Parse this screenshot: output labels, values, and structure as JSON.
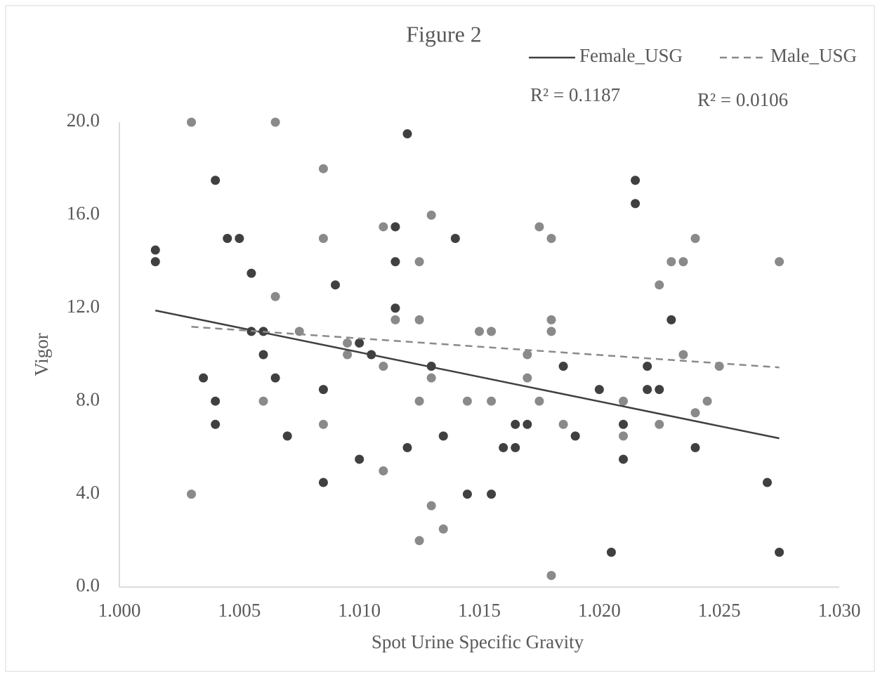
{
  "chart_data": {
    "type": "scatter",
    "title": "Figure 2",
    "x_label": "Spot Urine Specific Gravity",
    "y_label": "Vigor",
    "xlim": [
      1.0,
      1.03
    ],
    "xticks": [
      {
        "value": 1.0,
        "label": "1.000"
      },
      {
        "value": 1.005,
        "label": "1.005"
      },
      {
        "value": 1.01,
        "label": "1.010"
      },
      {
        "value": 1.015,
        "label": "1.015"
      },
      {
        "value": 1.02,
        "label": "1.020"
      },
      {
        "value": 1.025,
        "label": "1.025"
      },
      {
        "value": 1.03,
        "label": "1.030"
      }
    ],
    "ylim": [
      0,
      20
    ],
    "yticks": [
      {
        "value": 0,
        "label": "0.0"
      },
      {
        "value": 4,
        "label": "4.0"
      },
      {
        "value": 8,
        "label": "8.0"
      },
      {
        "value": 12,
        "label": "12.0"
      },
      {
        "value": 16,
        "label": "16.0"
      },
      {
        "value": 20,
        "label": "20.0"
      }
    ],
    "grid": false,
    "legend_position": "top-right",
    "series": [
      {
        "name": "Female_USG",
        "color": "#404040",
        "x": [
          1.0015,
          1.0015,
          1.0035,
          1.004,
          1.004,
          1.004,
          1.0045,
          1.005,
          1.0055,
          1.0055,
          1.006,
          1.006,
          1.0065,
          1.007,
          1.0085,
          1.0085,
          1.009,
          1.01,
          1.01,
          1.0105,
          1.0115,
          1.0115,
          1.0115,
          1.012,
          1.012,
          1.013,
          1.0135,
          1.014,
          1.0145,
          1.0155,
          1.016,
          1.0165,
          1.0165,
          1.017,
          1.0185,
          1.019,
          1.02,
          1.0205,
          1.021,
          1.021,
          1.0215,
          1.0215,
          1.022,
          1.022,
          1.0225,
          1.023,
          1.024,
          1.027,
          1.0275
        ],
        "values": [
          14.5,
          14,
          9,
          17.5,
          8,
          7,
          15,
          15,
          13.5,
          11,
          11,
          10,
          9,
          6.5,
          8.5,
          4.5,
          13,
          10.5,
          5.5,
          10,
          15.5,
          14,
          12,
          19.5,
          6,
          9.5,
          6.5,
          15,
          4,
          4,
          6,
          7,
          6,
          7,
          9.5,
          6.5,
          8.5,
          1.5,
          7,
          5.5,
          17.5,
          16.5,
          9.5,
          8.5,
          8.5,
          11.5,
          6,
          4.5,
          1.5
        ],
        "trendline": {
          "line_style": "solid",
          "r2_label": "R² = 0.1187",
          "x": [
            1.0015,
            1.0275
          ],
          "values": [
            11.9,
            6.4
          ]
        }
      },
      {
        "name": "Male_USG",
        "color": "#8a8a8a",
        "x": [
          1.003,
          1.003,
          1.0065,
          1.0065,
          1.006,
          1.0075,
          1.0085,
          1.0085,
          1.0085,
          1.0095,
          1.0095,
          1.011,
          1.011,
          1.011,
          1.0115,
          1.0125,
          1.0125,
          1.0125,
          1.0125,
          1.013,
          1.013,
          1.013,
          1.0135,
          1.0145,
          1.015,
          1.0155,
          1.0155,
          1.017,
          1.017,
          1.0175,
          1.0175,
          1.018,
          1.018,
          1.018,
          1.018,
          1.0185,
          1.021,
          1.021,
          1.0225,
          1.0225,
          1.023,
          1.0235,
          1.0235,
          1.024,
          1.024,
          1.0245,
          1.025,
          1.0275
        ],
        "values": [
          20,
          4,
          20,
          12.5,
          8,
          11,
          18,
          15,
          7,
          10.5,
          10,
          15.5,
          9.5,
          5,
          11.5,
          14,
          11.5,
          8,
          2,
          16,
          9,
          3.5,
          2.5,
          8,
          11,
          11,
          8,
          10,
          9,
          15.5,
          8,
          15,
          11.5,
          11,
          0.5,
          7,
          8,
          6.5,
          13,
          7,
          14,
          14,
          10,
          15,
          7.5,
          8,
          9.5,
          14
        ],
        "trendline": {
          "line_style": "dashed",
          "r2_label": "R² = 0.0106",
          "x": [
            1.003,
            1.0275
          ],
          "values": [
            11.2,
            9.45
          ]
        }
      }
    ]
  }
}
